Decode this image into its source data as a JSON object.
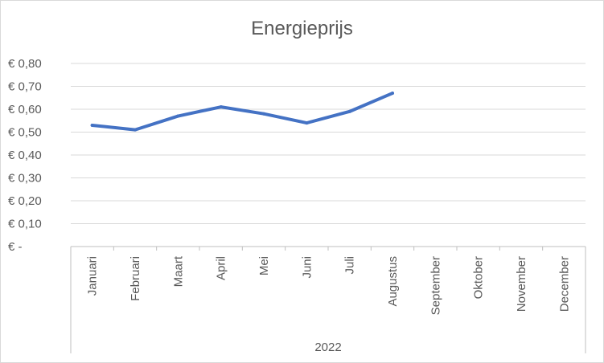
{
  "chart_data": {
    "type": "line",
    "title": "Energieprijs",
    "categories": [
      "Januari",
      "Februari",
      "Maart",
      "April",
      "Mei",
      "Juni",
      "Juli",
      "Augustus",
      "September",
      "Oktober",
      "November",
      "December"
    ],
    "category_group": "2022",
    "series": [
      {
        "values": [
          0.53,
          0.51,
          0.57,
          0.61,
          0.58,
          0.54,
          0.59,
          0.67,
          null,
          null,
          null,
          null
        ]
      }
    ],
    "ylim": [
      0,
      0.8
    ],
    "yticks": [
      0,
      0.1,
      0.2,
      0.3,
      0.4,
      0.5,
      0.6,
      0.7,
      0.8
    ],
    "ytick_labels": [
      "€ -",
      "€ 0,10",
      "€ 0,20",
      "€ 0,30",
      "€ 0,40",
      "€ 0,50",
      "€ 0,60",
      "€ 0,70",
      "€ 0,80"
    ],
    "grid": true,
    "line_color": "#4472c4",
    "grid_color": "#d9d9d9",
    "axis_color": "#bfbfbf"
  }
}
